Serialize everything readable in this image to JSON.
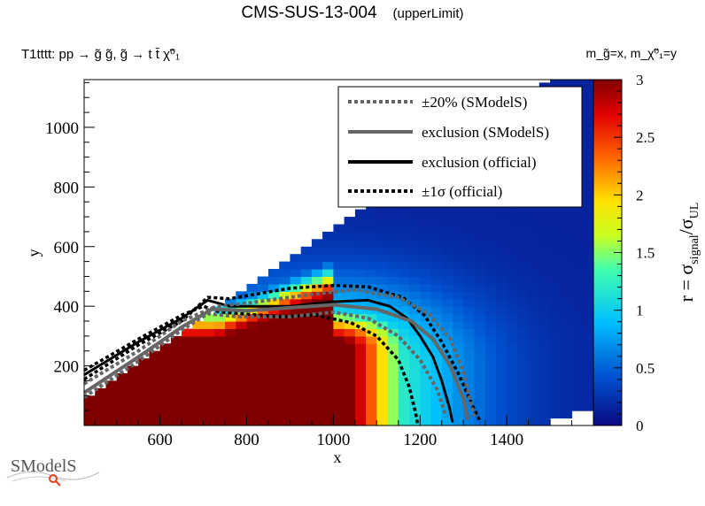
{
  "header": {
    "title": "CMS-SUS-13-004",
    "subtitle": "(upperLimit)",
    "process": "T1tttt: pp → g̃ g̃, g̃ → t t̄ χ̃⁰₁",
    "axes_note": "m_g̃=x, m_χ̃⁰₁=y"
  },
  "logo": {
    "text": "SModelS"
  },
  "colors": {
    "dark_red": "#7f0000",
    "legend_bg": "#ffffff",
    "smodels_line": "#666666",
    "official_line": "#000000"
  },
  "chart_data": {
    "type": "heatmap",
    "xlabel": "x",
    "ylabel": "y",
    "zlabel": "r = σsignal/σUL",
    "xlim": [
      425,
      1600
    ],
    "ylim": [
      0,
      1160
    ],
    "zlim": [
      0,
      3
    ],
    "x_ticks": [
      600,
      800,
      1000,
      1200,
      1400
    ],
    "y_ticks": [
      200,
      400,
      600,
      800,
      1000
    ],
    "z_ticks": [
      0,
      0.5,
      1,
      1.5,
      2,
      2.5,
      3
    ],
    "legend": {
      "position": "top-right",
      "entries": [
        {
          "label": "±20% (SModelS)",
          "style": "dotted-gray"
        },
        {
          "label": "exclusion (SModelS)",
          "style": "solid-gray"
        },
        {
          "label": "exclusion (official)",
          "style": "solid-black"
        },
        {
          "label": "±1σ (official)",
          "style": "dotted-black"
        }
      ]
    },
    "series": [
      {
        "name": "exclusion (official)",
        "x": [
          425,
          550,
          650,
          710,
          760,
          900,
          1000,
          1080,
          1130,
          1170,
          1200,
          1230,
          1250,
          1268,
          1275
        ],
        "y": [
          170,
          280,
          360,
          420,
          400,
          400,
          415,
          420,
          400,
          360,
          300,
          230,
          150,
          60,
          10
        ]
      },
      {
        "name": "+1σ (official)",
        "x": [
          425,
          550,
          650,
          710,
          760,
          900,
          1000,
          1080,
          1160,
          1210,
          1250,
          1290,
          1320,
          1340
        ],
        "y": [
          155,
          270,
          350,
          430,
          425,
          460,
          470,
          465,
          430,
          370,
          280,
          170,
          70,
          10
        ]
      },
      {
        "name": "-1σ (official)",
        "x": [
          425,
          550,
          650,
          700,
          740,
          880,
          960,
          1040,
          1100,
          1150,
          1175,
          1190,
          1195
        ],
        "y": [
          185,
          290,
          370,
          400,
          380,
          365,
          370,
          345,
          300,
          220,
          130,
          40,
          0
        ]
      },
      {
        "name": "exclusion (SModelS)",
        "x": [
          425,
          550,
          650,
          720,
          800,
          900,
          1000,
          1100,
          1180,
          1230,
          1270,
          1300,
          1310
        ],
        "y": [
          110,
          230,
          330,
          390,
          385,
          395,
          405,
          390,
          350,
          290,
          200,
          90,
          20
        ]
      },
      {
        "name": "+20% (SModelS)",
        "x": [
          425,
          550,
          650,
          730,
          800,
          950,
          1050,
          1150,
          1220,
          1270,
          1300,
          1325
        ],
        "y": [
          140,
          250,
          350,
          400,
          410,
          440,
          455,
          430,
          375,
          290,
          180,
          30
        ]
      },
      {
        "name": "-20% (SModelS)",
        "x": [
          425,
          550,
          650,
          710,
          780,
          900,
          1000,
          1080,
          1150,
          1200,
          1240,
          1260
        ],
        "y": [
          95,
          215,
          320,
          375,
          365,
          365,
          380,
          360,
          300,
          220,
          120,
          30
        ]
      }
    ]
  }
}
